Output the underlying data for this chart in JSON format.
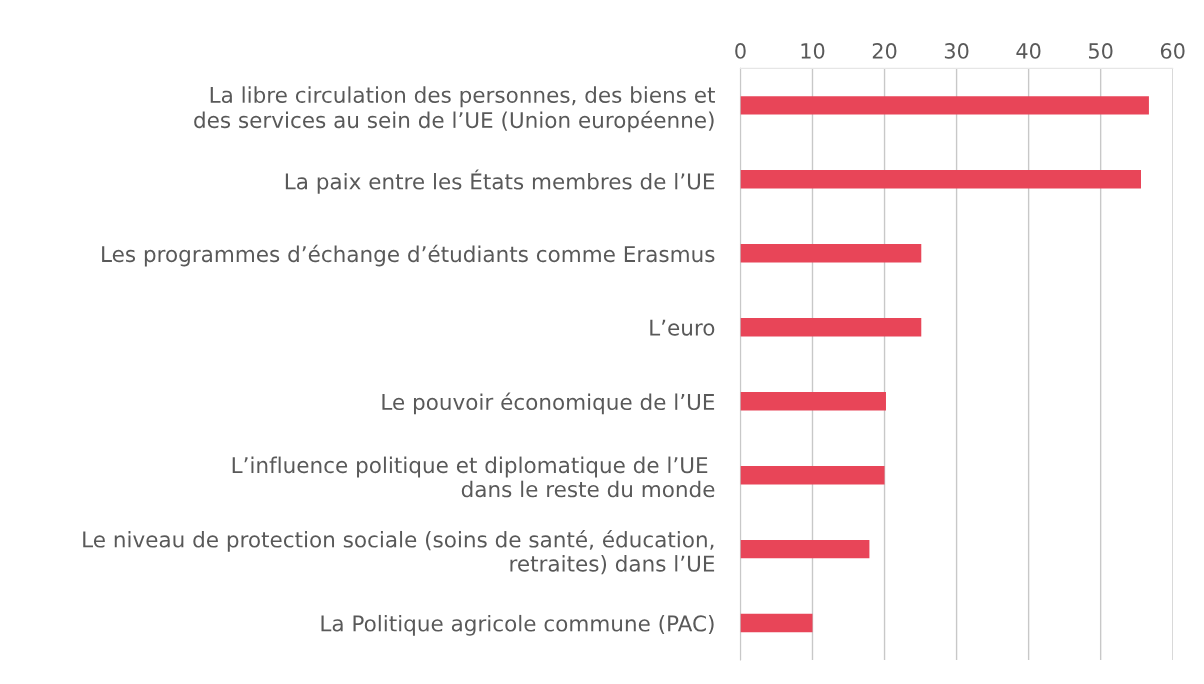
{
  "chart_data": {
    "type": "bar",
    "orientation": "horizontal",
    "categories": [
      "La libre circulation des personnes, des biens et\ndes services au sein de l’UE (Union européenne)",
      "La paix entre les États membres de l’UE",
      "Les programmes d’échange d’étudiants comme Erasmus",
      "L’euro",
      "Le pouvoir économique de l’UE",
      "L’influence politique et diplomatique de l’UE \ndans le reste du monde",
      "Le niveau de protection sociale (soins de santé, éducation,\nretraites) dans l’UE",
      "La Politique agricole commune (PAC)"
    ],
    "values": [
      56.7,
      55.6,
      25.1,
      25.1,
      20.2,
      20,
      17.9,
      10
    ],
    "color": "#e84558",
    "xlim": [
      0,
      60
    ],
    "xticks": [
      0,
      10,
      20,
      30,
      40,
      50,
      60
    ],
    "grid": "x"
  }
}
